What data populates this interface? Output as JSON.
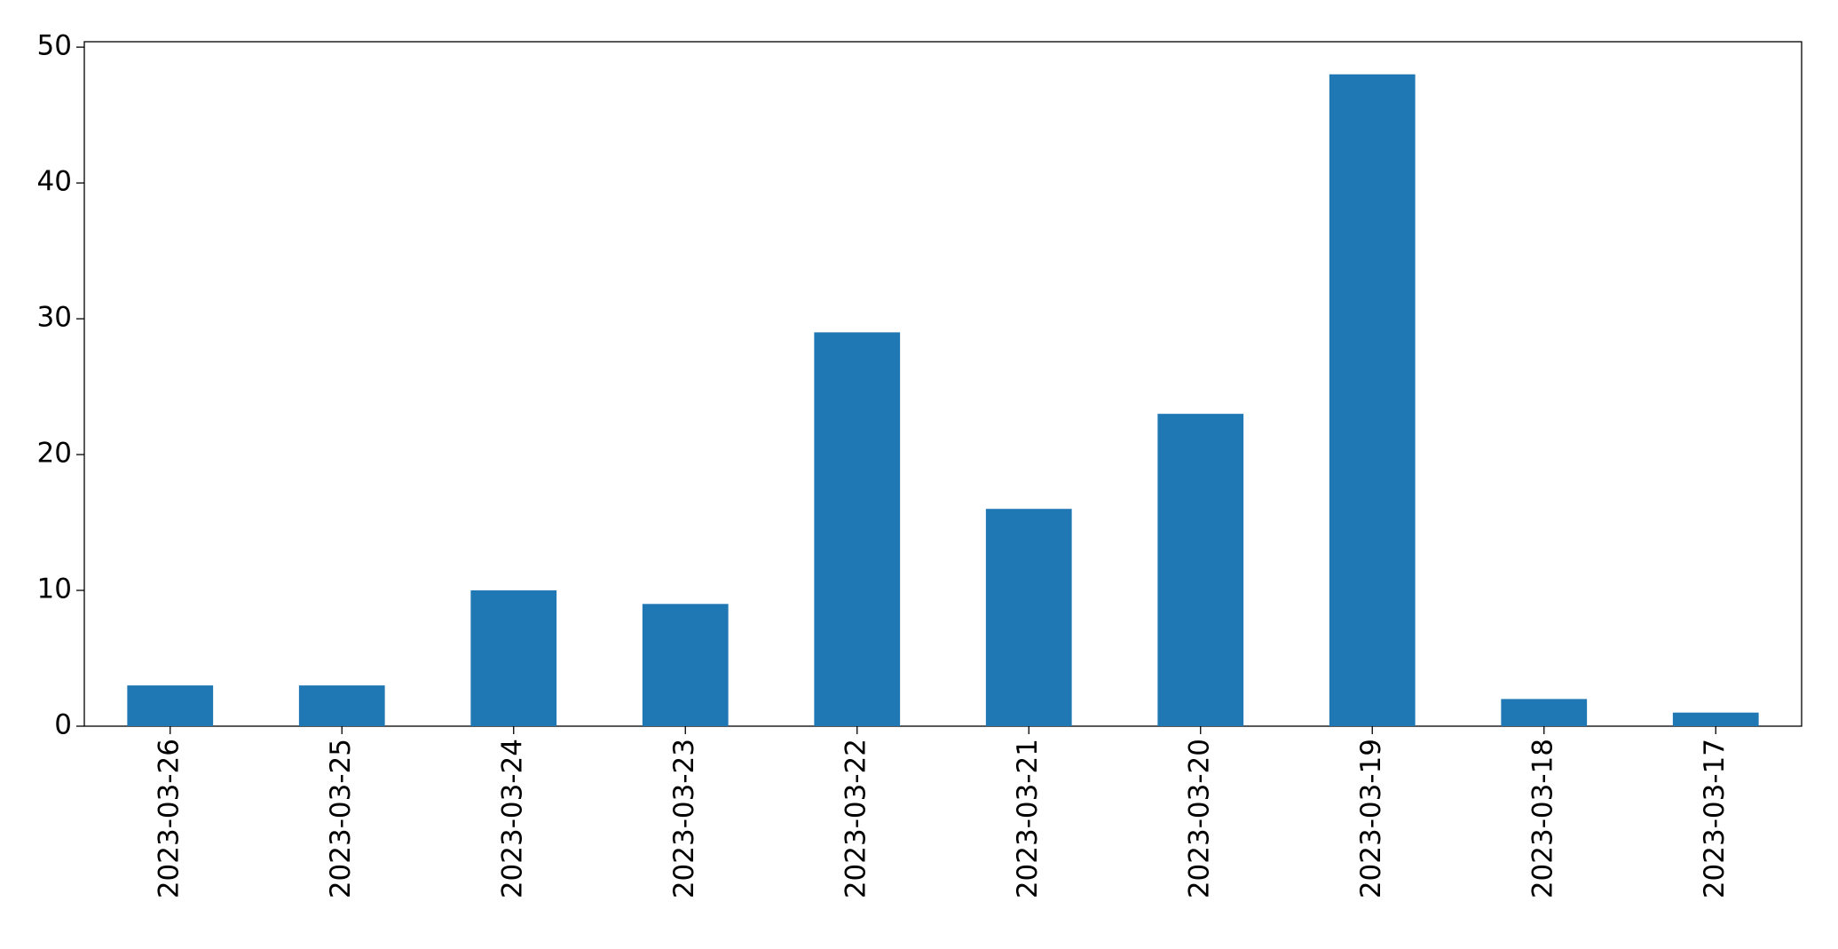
{
  "chart_data": {
    "type": "bar",
    "categories": [
      "2023-03-26",
      "2023-03-25",
      "2023-03-24",
      "2023-03-23",
      "2023-03-22",
      "2023-03-21",
      "2023-03-20",
      "2023-03-19",
      "2023-03-18",
      "2023-03-17"
    ],
    "values": [
      3,
      3,
      10,
      9,
      29,
      16,
      23,
      48,
      2,
      1
    ],
    "color": "#1f77b4",
    "ylim": [
      0,
      50.4
    ],
    "yticks": [
      0,
      10,
      20,
      30,
      40,
      50
    ],
    "grid": false
  }
}
